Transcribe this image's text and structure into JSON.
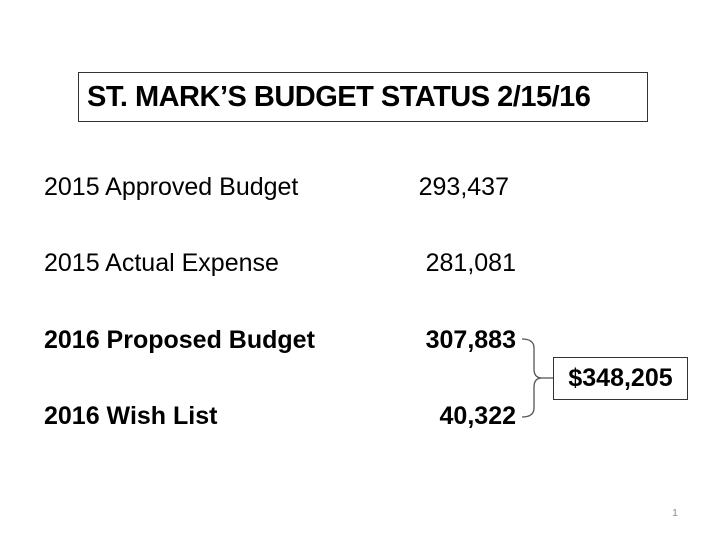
{
  "slide": {
    "title": "ST. MARK’S BUDGET STATUS 2/15/16",
    "rows": [
      {
        "label": "2015 Approved Budget",
        "value": "293,437"
      },
      {
        "label": "2015 Actual Expense",
        "value": "281,081"
      },
      {
        "label": "2016 Proposed Budget",
        "value": "307,883"
      },
      {
        "label": "2016 Wish List",
        "value": "40,322"
      }
    ],
    "total": "$348,205",
    "page_number": "1"
  },
  "colors": {
    "text": "#000000",
    "border": "#333333",
    "page_number": "#888888"
  }
}
